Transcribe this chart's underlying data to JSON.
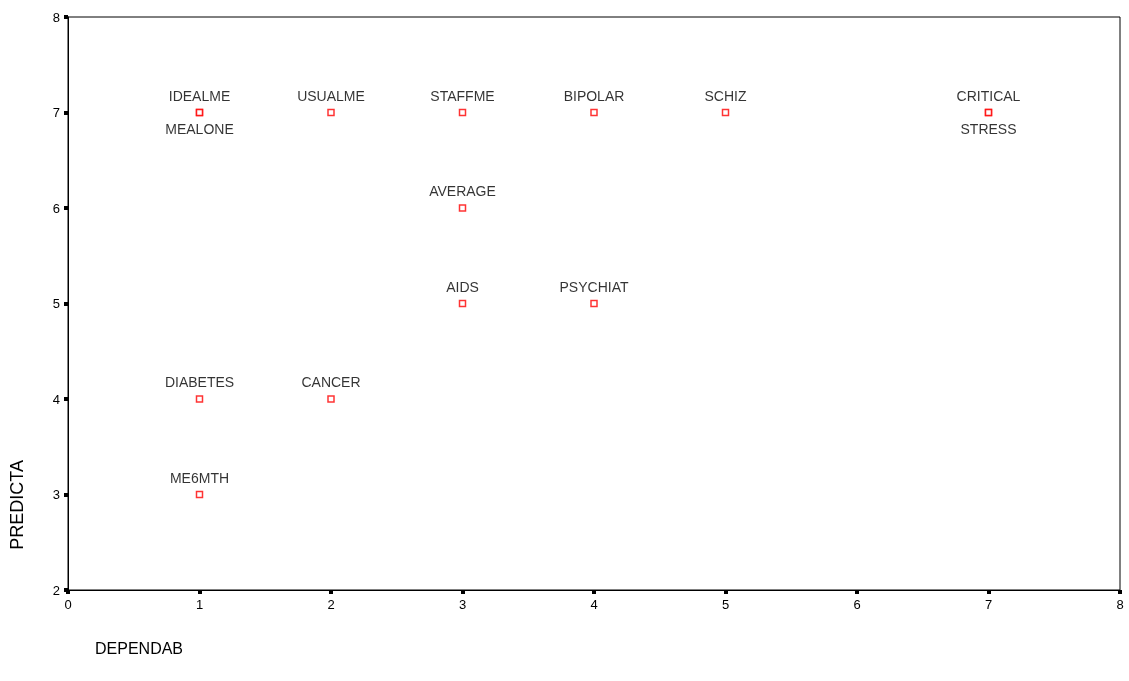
{
  "chart_data": {
    "type": "scatter",
    "xlabel": "DEPENDAB",
    "ylabel": "PREDICTA",
    "x": [
      1,
      1,
      2,
      3,
      4,
      5,
      7,
      7,
      3,
      3,
      4,
      1,
      2,
      1
    ],
    "values": [
      7,
      7,
      7,
      7,
      7,
      7,
      7,
      7,
      6,
      5,
      5,
      4,
      4,
      3
    ],
    "value_labels": [
      "IDEALME",
      "MEALONE",
      "USUALME",
      "STAFFME",
      "BIPOLAR",
      "SCHIZ",
      "CRITICAL",
      "STRESS",
      "AVERAGE",
      "AIDS",
      "PSYCHIAT",
      "DIABETES",
      "CANCER",
      "ME6MTH"
    ],
    "color": "#ff0000",
    "marker": "square",
    "grid": false,
    "xlim": [
      0,
      8
    ],
    "xticks": [
      0,
      1,
      2,
      3,
      4,
      5,
      6,
      7,
      8
    ],
    "ylim": [
      2,
      8
    ],
    "yticks": [
      2,
      3,
      4,
      5,
      6,
      7,
      8
    ]
  }
}
